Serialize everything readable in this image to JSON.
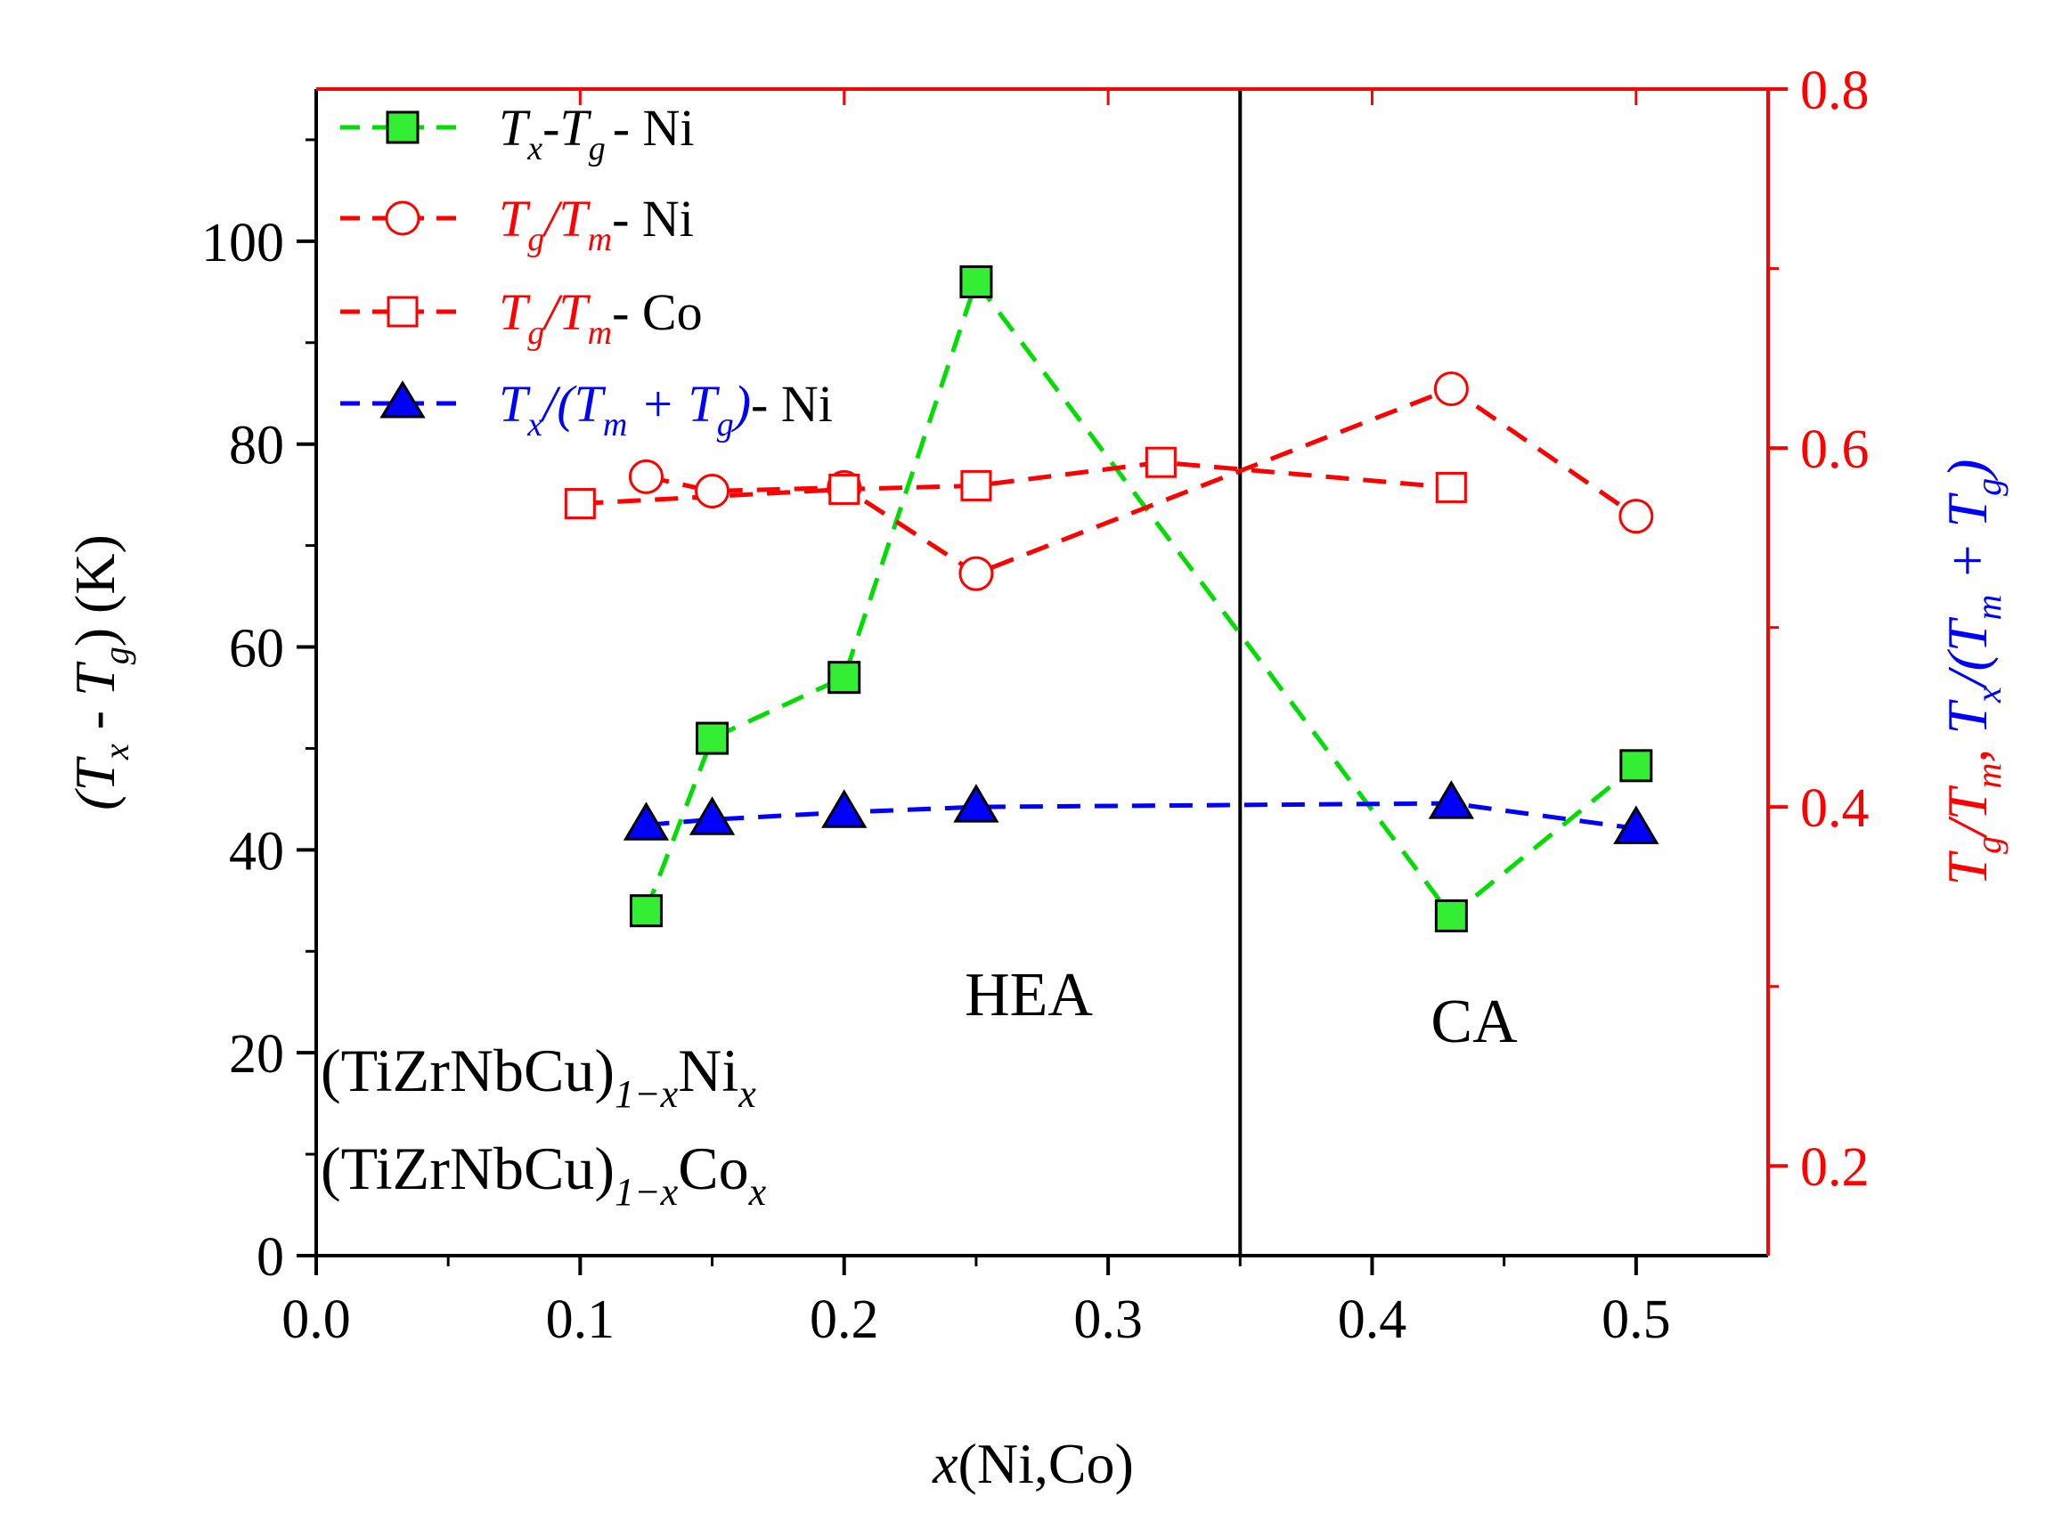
{
  "chart_data": {
    "type": "line",
    "xlabel_var": "x",
    "xlabel_rest": "(Ni,Co)",
    "xlim": [
      0.0,
      0.55
    ],
    "x_ticks": [
      "0.0",
      "0.1",
      "0.2",
      "0.3",
      "0.4",
      "0.5"
    ],
    "x_tick_values": [
      0.0,
      0.1,
      0.2,
      0.3,
      0.4,
      0.5
    ],
    "y_left": {
      "label": "(Tx - Tg) (K)",
      "lim": [
        0,
        115
      ],
      "ticks": [
        "0",
        "20",
        "40",
        "60",
        "80",
        "100"
      ],
      "tick_values": [
        0,
        20,
        40,
        60,
        80,
        100
      ]
    },
    "y_right": {
      "label": "Tg/Tm, Tx/(Tm + Tg)",
      "lim": [
        0.15,
        0.8
      ],
      "ticks": [
        "0.2",
        "0.4",
        "0.6",
        "0.8"
      ],
      "tick_values": [
        0.2,
        0.4,
        0.6,
        0.8
      ]
    },
    "series": [
      {
        "name": "Tx-Tg- Ni",
        "label_main": "T",
        "axis": "left",
        "color": "#00dd00",
        "fill": "#33ee33",
        "marker": "square-filled",
        "x": [
          0.125,
          0.15,
          0.2,
          0.25,
          0.43,
          0.5
        ],
        "y": [
          34,
          51,
          57,
          96,
          33.5,
          48.3
        ]
      },
      {
        "name": "Tg/Tm- Ni",
        "axis": "right",
        "color": "#ff0000",
        "fill": "none",
        "marker": "circle-open",
        "x": [
          0.125,
          0.15,
          0.2,
          0.25,
          0.43,
          0.5
        ],
        "y": [
          0.584,
          0.576,
          0.578,
          0.53,
          0.633,
          0.562
        ]
      },
      {
        "name": "Tg/Tm- Co",
        "axis": "right",
        "color": "#ff0000",
        "fill": "none",
        "marker": "square-open",
        "x": [
          0.1,
          0.2,
          0.25,
          0.32,
          0.43
        ],
        "y": [
          0.569,
          0.577,
          0.579,
          0.592,
          0.578
        ]
      },
      {
        "name": "Tx/(Tm + Tg)- Ni",
        "axis": "right",
        "color": "#0000ff",
        "fill": "#0000ff",
        "marker": "triangle-filled",
        "x": [
          0.125,
          0.15,
          0.2,
          0.25,
          0.43,
          0.5
        ],
        "y": [
          0.39,
          0.393,
          0.397,
          0.4,
          0.402,
          0.388
        ]
      }
    ],
    "divider_x": 0.35,
    "annotations": [
      "HEA",
      "CA"
    ]
  },
  "legend": {
    "s1": {
      "a": "T",
      "a_sub": "x",
      "b": "-T",
      "b_sub": "g",
      "tail": "-  Ni"
    },
    "s2": {
      "a": "T",
      "a_sub": "g",
      "b": "/T",
      "b_sub": "m",
      "tail": "- Ni"
    },
    "s3": {
      "a": "T",
      "a_sub": "g",
      "b": "/T",
      "b_sub": "m",
      "tail": "- Co"
    },
    "s4": {
      "a": "T",
      "a_sub": "x",
      "b": "/(T",
      "b_sub": "m",
      "c": " + T",
      "c_sub": "g",
      "d": ")",
      "tail": "- Ni"
    }
  },
  "axis_titles": {
    "left": {
      "p1": "(T",
      "s1": "x",
      "p2": " - T",
      "s2": "g",
      "p3": ") (K)"
    },
    "right": {
      "a": "T",
      "a_sub": "g",
      "b": "/T",
      "b_sub": "m",
      "c": ", ",
      "d": "T",
      "d_sub": "x",
      "e": "/(T",
      "e_sub": "m",
      "f": " + T",
      "f_sub": "g",
      "g": ")"
    }
  },
  "compositions": {
    "c1": {
      "base": "(TiZrNbCu)",
      "sub": "1−x",
      "el": "Ni",
      "el_sub": "x"
    },
    "c2": {
      "base": "(TiZrNbCu)",
      "sub": "1−x",
      "el": "Co",
      "el_sub": "x"
    }
  }
}
